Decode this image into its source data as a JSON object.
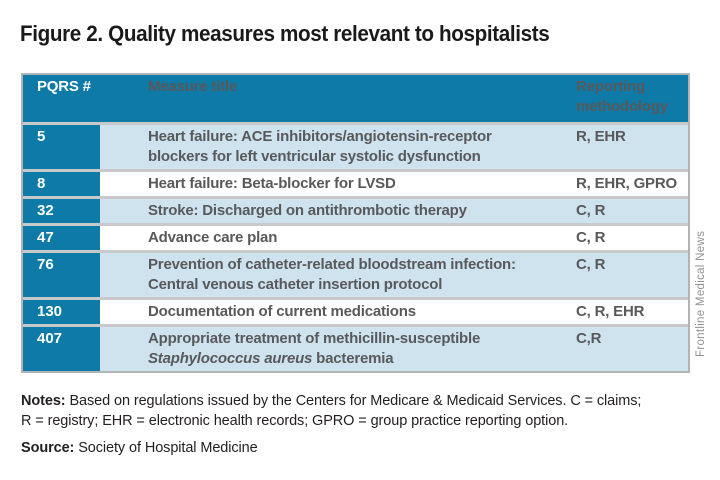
{
  "figure_title": "Figure 2. Quality measures most relevant to hospitalists",
  "table": {
    "header": {
      "col_pqrs": "PQRS #",
      "col_title": "Measure title",
      "col_reporting": "Reporting methodology"
    },
    "rows": [
      {
        "pqrs": "5",
        "title": "Heart failure: ACE inhibitors/angiotensin-receptor\nblockers for left ventricular systolic dysfunction",
        "title_italic": "",
        "title_after": "",
        "reporting": "R, EHR"
      },
      {
        "pqrs": "8",
        "title": "Heart failure: Beta-blocker for LVSD",
        "title_italic": "",
        "title_after": "",
        "reporting": "R, EHR, GPRO"
      },
      {
        "pqrs": "32",
        "title": "Stroke: Discharged on antithrombotic therapy",
        "title_italic": "",
        "title_after": "",
        "reporting": "C, R"
      },
      {
        "pqrs": "47",
        "title": "Advance care plan",
        "title_italic": "",
        "title_after": "",
        "reporting": "C, R"
      },
      {
        "pqrs": "76",
        "title": "Prevention of catheter-related bloodstream infection:\nCentral venous catheter insertion protocol",
        "title_italic": "",
        "title_after": "",
        "reporting": "C, R"
      },
      {
        "pqrs": "130",
        "title": "Documentation of current medications",
        "title_italic": "",
        "title_after": "",
        "reporting": "C, R, EHR"
      },
      {
        "pqrs": "407",
        "title": "Appropriate treatment of methicillin-susceptible\n",
        "title_italic": "Staphylococcus aureus",
        "title_after": " bacteremia",
        "reporting": "C,R"
      }
    ]
  },
  "footer": {
    "notes_label": "Notes:",
    "notes_text": "Based on regulations issued by the Centers for Medicare & Medicaid Services. C = claims;\nR = registry; EHR = electronic health records; GPRO = group practice reporting option.",
    "source_label": "Source:",
    "source_text": "Society of Hospital Medicine"
  },
  "credit": "Frontline Medical News",
  "colors": {
    "header_bg": "#0d7aa8",
    "row_alt_bg": "#cfe3ef",
    "row_bg": "#ffffff",
    "header_text": "#ffffff",
    "body_text": "#58595b",
    "title_text": "#1a1a1a",
    "separator": "#c7c9cb",
    "border": "#b1b3b5",
    "credit_text": "#8f9194"
  }
}
